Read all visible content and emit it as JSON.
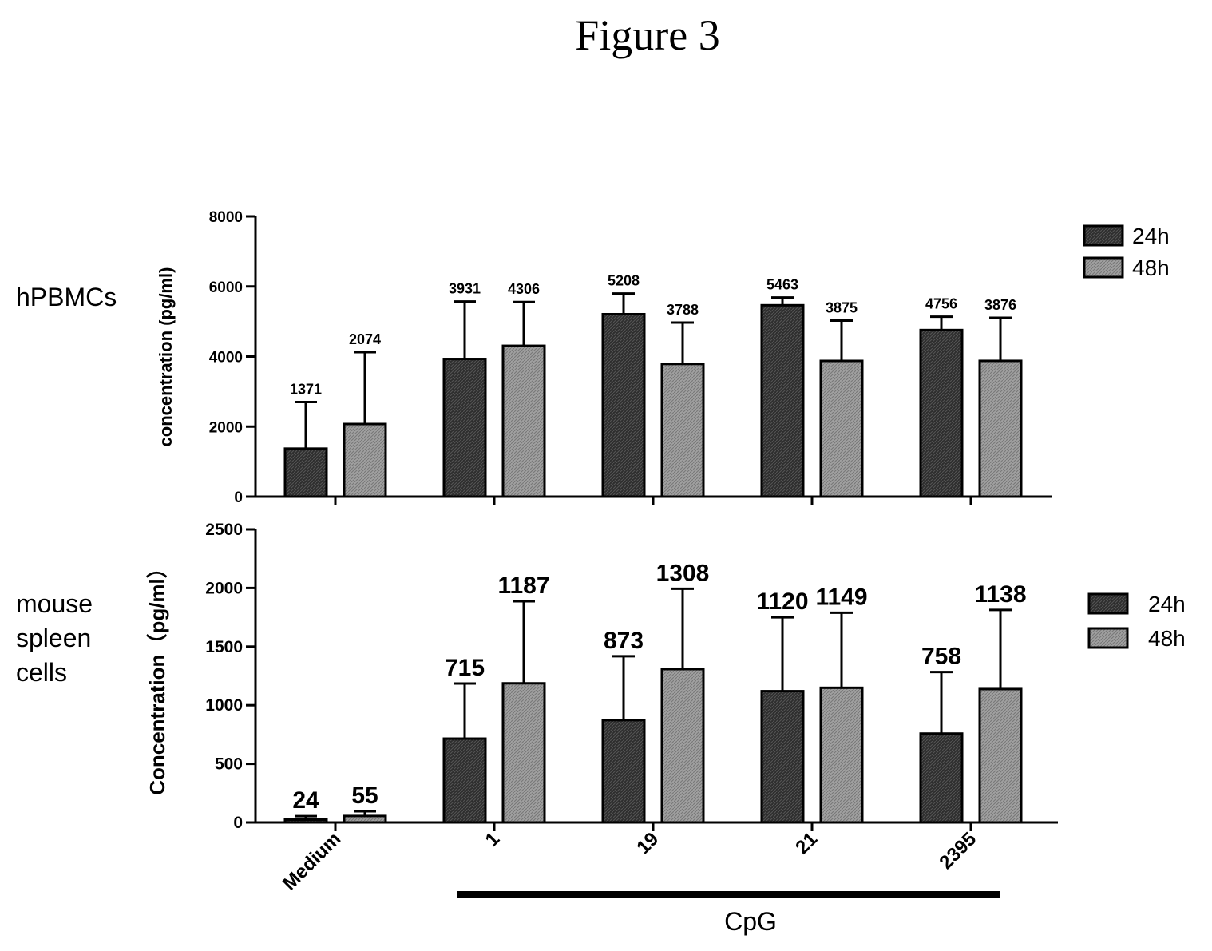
{
  "figure_title": "Figure 3",
  "row_labels": {
    "top": "hPBMCs",
    "bottom": [
      "mouse",
      "spleen",
      "cells"
    ]
  },
  "categories": [
    "Medium",
    "1",
    "19",
    "21",
    "2395"
  ],
  "group_label": "CpG",
  "colors": {
    "24h": "#333333",
    "48h": "#9a9a9a"
  },
  "chart_data": [
    {
      "type": "bar",
      "ylabel": "concentration (pg/ml)",
      "ylim": [
        0,
        8000
      ],
      "yticks": [
        0,
        2000,
        4000,
        6000,
        8000
      ],
      "legend": {
        "position": "top-right",
        "entries": [
          "24h",
          "48h"
        ]
      },
      "series": [
        {
          "name": "24h",
          "values": [
            1371,
            3931,
            5208,
            5463,
            4756
          ],
          "error": [
            1330,
            1640,
            590,
            220,
            380
          ]
        },
        {
          "name": "48h",
          "values": [
            2074,
            4306,
            3788,
            3875,
            3876
          ],
          "error": [
            2050,
            1250,
            1180,
            1150,
            1230
          ]
        }
      ]
    },
    {
      "type": "bar",
      "ylabel": "Concentration（pg/ml）",
      "ylim": [
        0,
        2500
      ],
      "yticks": [
        0,
        500,
        1000,
        1500,
        2000,
        2500
      ],
      "legend": {
        "position": "right",
        "entries": [
          "24h",
          "48h"
        ]
      },
      "series": [
        {
          "name": "24h",
          "values": [
            24,
            715,
            873,
            1120,
            758
          ],
          "error": [
            30,
            470,
            545,
            630,
            525
          ]
        },
        {
          "name": "48h",
          "values": [
            55,
            1187,
            1308,
            1149,
            1138
          ],
          "error": [
            40,
            700,
            685,
            640,
            675
          ]
        }
      ]
    }
  ]
}
